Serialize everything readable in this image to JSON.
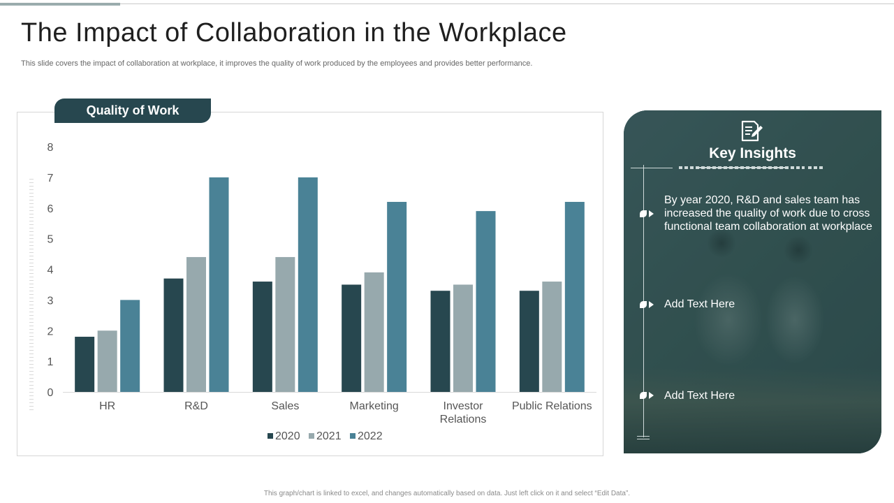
{
  "slide": {
    "title": "The Impact of Collaboration in the Workplace",
    "subtitle": "This slide covers the impact of collaboration at workplace, it improves the quality of work produced by the employees and provides better performance.",
    "footer": "This graph/chart is linked to excel, and changes automatically based on data. Just left click on it and select “Edit Data”."
  },
  "chart_tab": {
    "label": "Quality of Work"
  },
  "chart_data": {
    "type": "bar",
    "title": "Quality of Work",
    "categories": [
      "HR",
      "R&D",
      "Sales",
      "Marketing",
      "Investor Relations",
      "Public Relations"
    ],
    "series": [
      {
        "name": "2020",
        "values": [
          1.8,
          3.7,
          3.6,
          3.5,
          3.3,
          3.3
        ]
      },
      {
        "name": "2021",
        "values": [
          2.0,
          4.4,
          4.4,
          3.9,
          3.5,
          3.6
        ]
      },
      {
        "name": "2022",
        "values": [
          3.0,
          7.0,
          7.0,
          6.2,
          5.9,
          6.2
        ]
      }
    ],
    "colors": [
      "#27474f",
      "#97a9ad",
      "#4a8296"
    ],
    "ylim": [
      0,
      8
    ],
    "yticks": [
      0,
      1,
      2,
      3,
      4,
      5,
      6,
      7,
      8
    ],
    "xlabel": "",
    "ylabel": "",
    "grid": false,
    "legend_position": "bottom"
  },
  "insights": {
    "title": "Key Insights",
    "icon": "document-edit-icon",
    "items": [
      {
        "text": "By year 2020, R&D and sales team has increased the quality  of work due to cross functional  team collaboration at workplace"
      },
      {
        "text": "Add Text Here"
      },
      {
        "text": "Add Text Here"
      }
    ]
  }
}
